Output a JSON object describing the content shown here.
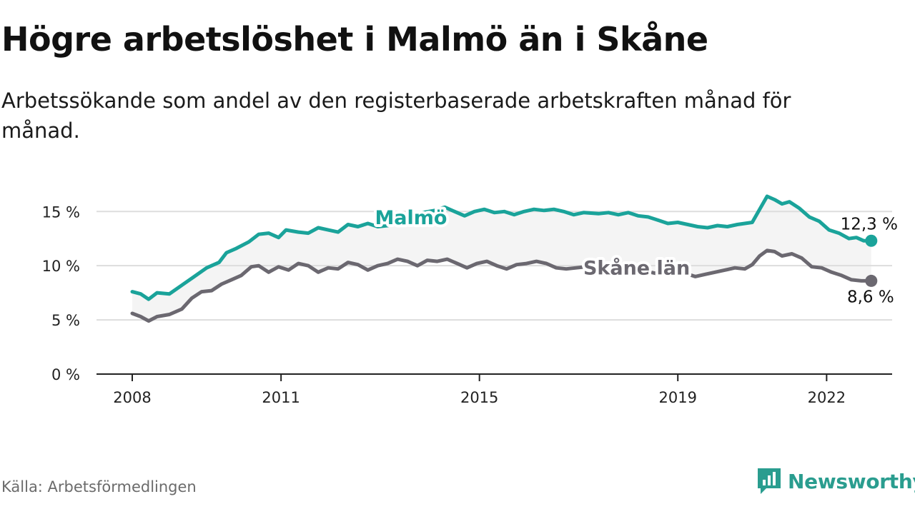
{
  "header": {
    "title": "Högre arbetslöshet i Malmö än i Skåne",
    "subtitle": "Arbetssökande som andel av den registerbaserade arbetskraften månad för månad."
  },
  "footer": {
    "source": "Källa: Arbetsförmedlingen",
    "brand": "Newsworthy"
  },
  "colors": {
    "malmo": "#1aa39a",
    "skane": "#6b6870",
    "band": "#f4f4f4",
    "grid": "#dddddd",
    "brand": "#2a9d8f"
  },
  "chart_data": {
    "type": "line",
    "title": "Högre arbetslöshet i Malmö än i Skåne",
    "xlabel": "",
    "ylabel": "",
    "xlim": [
      2008.0,
      2022.6
    ],
    "ylim": [
      0,
      16.5
    ],
    "y_ticks": [
      0,
      5,
      10,
      15
    ],
    "y_tick_labels": [
      "0 %",
      "5 %",
      "10 %",
      "15 %"
    ],
    "x_ticks": [
      2008,
      2011,
      2015,
      2019,
      2022
    ],
    "x_tick_labels": [
      "2008",
      "2011",
      "2015",
      "2019",
      "2022"
    ],
    "grid": true,
    "series": [
      {
        "name": "Malmö",
        "label": "Malmö",
        "end_label": "12,3 %",
        "end_value": 12.3,
        "points": [
          [
            2008.0,
            7.6
          ],
          [
            2008.17,
            7.4
          ],
          [
            2008.33,
            6.9
          ],
          [
            2008.5,
            7.5
          ],
          [
            2008.75,
            7.4
          ],
          [
            2009.0,
            8.2
          ],
          [
            2009.25,
            9.0
          ],
          [
            2009.5,
            9.8
          ],
          [
            2009.75,
            10.3
          ],
          [
            2009.9,
            11.2
          ],
          [
            2010.1,
            11.6
          ],
          [
            2010.35,
            12.2
          ],
          [
            2010.55,
            12.9
          ],
          [
            2010.75,
            13.0
          ],
          [
            2010.95,
            12.6
          ],
          [
            2011.1,
            13.3
          ],
          [
            2011.35,
            13.1
          ],
          [
            2011.55,
            13.0
          ],
          [
            2011.75,
            13.5
          ],
          [
            2011.95,
            13.3
          ],
          [
            2012.15,
            13.1
          ],
          [
            2012.35,
            13.8
          ],
          [
            2012.55,
            13.6
          ],
          [
            2012.75,
            13.9
          ],
          [
            2012.95,
            13.6
          ],
          [
            2013.15,
            13.7
          ],
          [
            2013.4,
            14.1
          ],
          [
            2013.6,
            14.4
          ],
          [
            2013.85,
            14.9
          ],
          [
            2014.1,
            15.1
          ],
          [
            2014.3,
            15.4
          ],
          [
            2014.5,
            15.0
          ],
          [
            2014.7,
            14.6
          ],
          [
            2014.9,
            15.0
          ],
          [
            2015.1,
            15.2
          ],
          [
            2015.3,
            14.9
          ],
          [
            2015.5,
            15.0
          ],
          [
            2015.7,
            14.7
          ],
          [
            2015.9,
            15.0
          ],
          [
            2016.1,
            15.2
          ],
          [
            2016.3,
            15.1
          ],
          [
            2016.5,
            15.2
          ],
          [
            2016.7,
            15.0
          ],
          [
            2016.9,
            14.7
          ],
          [
            2017.1,
            14.9
          ],
          [
            2017.4,
            14.8
          ],
          [
            2017.6,
            14.9
          ],
          [
            2017.8,
            14.7
          ],
          [
            2018.0,
            14.9
          ],
          [
            2018.2,
            14.6
          ],
          [
            2018.4,
            14.5
          ],
          [
            2018.6,
            14.2
          ],
          [
            2018.8,
            13.9
          ],
          [
            2019.0,
            14.0
          ],
          [
            2019.2,
            13.8
          ],
          [
            2019.4,
            13.6
          ],
          [
            2019.6,
            13.5
          ],
          [
            2019.8,
            13.7
          ],
          [
            2020.0,
            13.6
          ],
          [
            2020.2,
            13.8
          ],
          [
            2020.35,
            13.9
          ],
          [
            2020.5,
            14.0
          ],
          [
            2020.65,
            15.2
          ],
          [
            2020.8,
            16.4
          ],
          [
            2020.95,
            16.1
          ],
          [
            2021.1,
            15.7
          ],
          [
            2021.25,
            15.9
          ],
          [
            2021.45,
            15.3
          ],
          [
            2021.65,
            14.5
          ],
          [
            2021.85,
            14.1
          ],
          [
            2022.05,
            13.3
          ],
          [
            2022.25,
            13.0
          ],
          [
            2022.45,
            12.5
          ],
          [
            2022.6,
            12.6
          ],
          [
            2022.75,
            12.3
          ],
          [
            2022.9,
            12.3
          ]
        ]
      },
      {
        "name": "Skåne län",
        "label": "Skåne län",
        "end_label": "8,6 %",
        "end_value": 8.6,
        "points": [
          [
            2008.0,
            5.6
          ],
          [
            2008.17,
            5.3
          ],
          [
            2008.33,
            4.9
          ],
          [
            2008.5,
            5.3
          ],
          [
            2008.75,
            5.5
          ],
          [
            2009.0,
            6.0
          ],
          [
            2009.2,
            7.0
          ],
          [
            2009.4,
            7.6
          ],
          [
            2009.6,
            7.7
          ],
          [
            2009.8,
            8.3
          ],
          [
            2010.0,
            8.7
          ],
          [
            2010.2,
            9.1
          ],
          [
            2010.4,
            9.9
          ],
          [
            2010.55,
            10.0
          ],
          [
            2010.75,
            9.4
          ],
          [
            2010.95,
            9.9
          ],
          [
            2011.15,
            9.6
          ],
          [
            2011.35,
            10.2
          ],
          [
            2011.55,
            10.0
          ],
          [
            2011.75,
            9.4
          ],
          [
            2011.95,
            9.8
          ],
          [
            2012.15,
            9.7
          ],
          [
            2012.35,
            10.3
          ],
          [
            2012.55,
            10.1
          ],
          [
            2012.75,
            9.6
          ],
          [
            2012.95,
            10.0
          ],
          [
            2013.15,
            10.2
          ],
          [
            2013.35,
            10.6
          ],
          [
            2013.55,
            10.4
          ],
          [
            2013.75,
            10.0
          ],
          [
            2013.95,
            10.5
          ],
          [
            2014.15,
            10.4
          ],
          [
            2014.35,
            10.6
          ],
          [
            2014.55,
            10.2
          ],
          [
            2014.75,
            9.8
          ],
          [
            2014.95,
            10.2
          ],
          [
            2015.15,
            10.4
          ],
          [
            2015.35,
            10.0
          ],
          [
            2015.55,
            9.7
          ],
          [
            2015.75,
            10.1
          ],
          [
            2015.95,
            10.2
          ],
          [
            2016.15,
            10.4
          ],
          [
            2016.35,
            10.2
          ],
          [
            2016.55,
            9.8
          ],
          [
            2016.75,
            9.7
          ],
          [
            2016.95,
            9.8
          ],
          [
            2017.15,
            9.9
          ],
          [
            2017.35,
            9.8
          ],
          [
            2017.55,
            9.6
          ],
          [
            2017.75,
            9.7
          ],
          [
            2017.95,
            9.5
          ],
          [
            2018.15,
            9.4
          ],
          [
            2018.35,
            9.5
          ],
          [
            2018.55,
            9.3
          ],
          [
            2018.75,
            9.4
          ],
          [
            2018.95,
            9.6
          ],
          [
            2019.15,
            9.3
          ],
          [
            2019.35,
            9.0
          ],
          [
            2019.55,
            9.2
          ],
          [
            2019.75,
            9.4
          ],
          [
            2019.95,
            9.6
          ],
          [
            2020.15,
            9.8
          ],
          [
            2020.35,
            9.7
          ],
          [
            2020.5,
            10.1
          ],
          [
            2020.65,
            10.9
          ],
          [
            2020.8,
            11.4
          ],
          [
            2020.95,
            11.3
          ],
          [
            2021.1,
            10.9
          ],
          [
            2021.3,
            11.1
          ],
          [
            2021.5,
            10.7
          ],
          [
            2021.7,
            9.9
          ],
          [
            2021.9,
            9.8
          ],
          [
            2022.1,
            9.4
          ],
          [
            2022.3,
            9.1
          ],
          [
            2022.5,
            8.7
          ],
          [
            2022.7,
            8.6
          ],
          [
            2022.9,
            8.6
          ]
        ]
      }
    ]
  }
}
